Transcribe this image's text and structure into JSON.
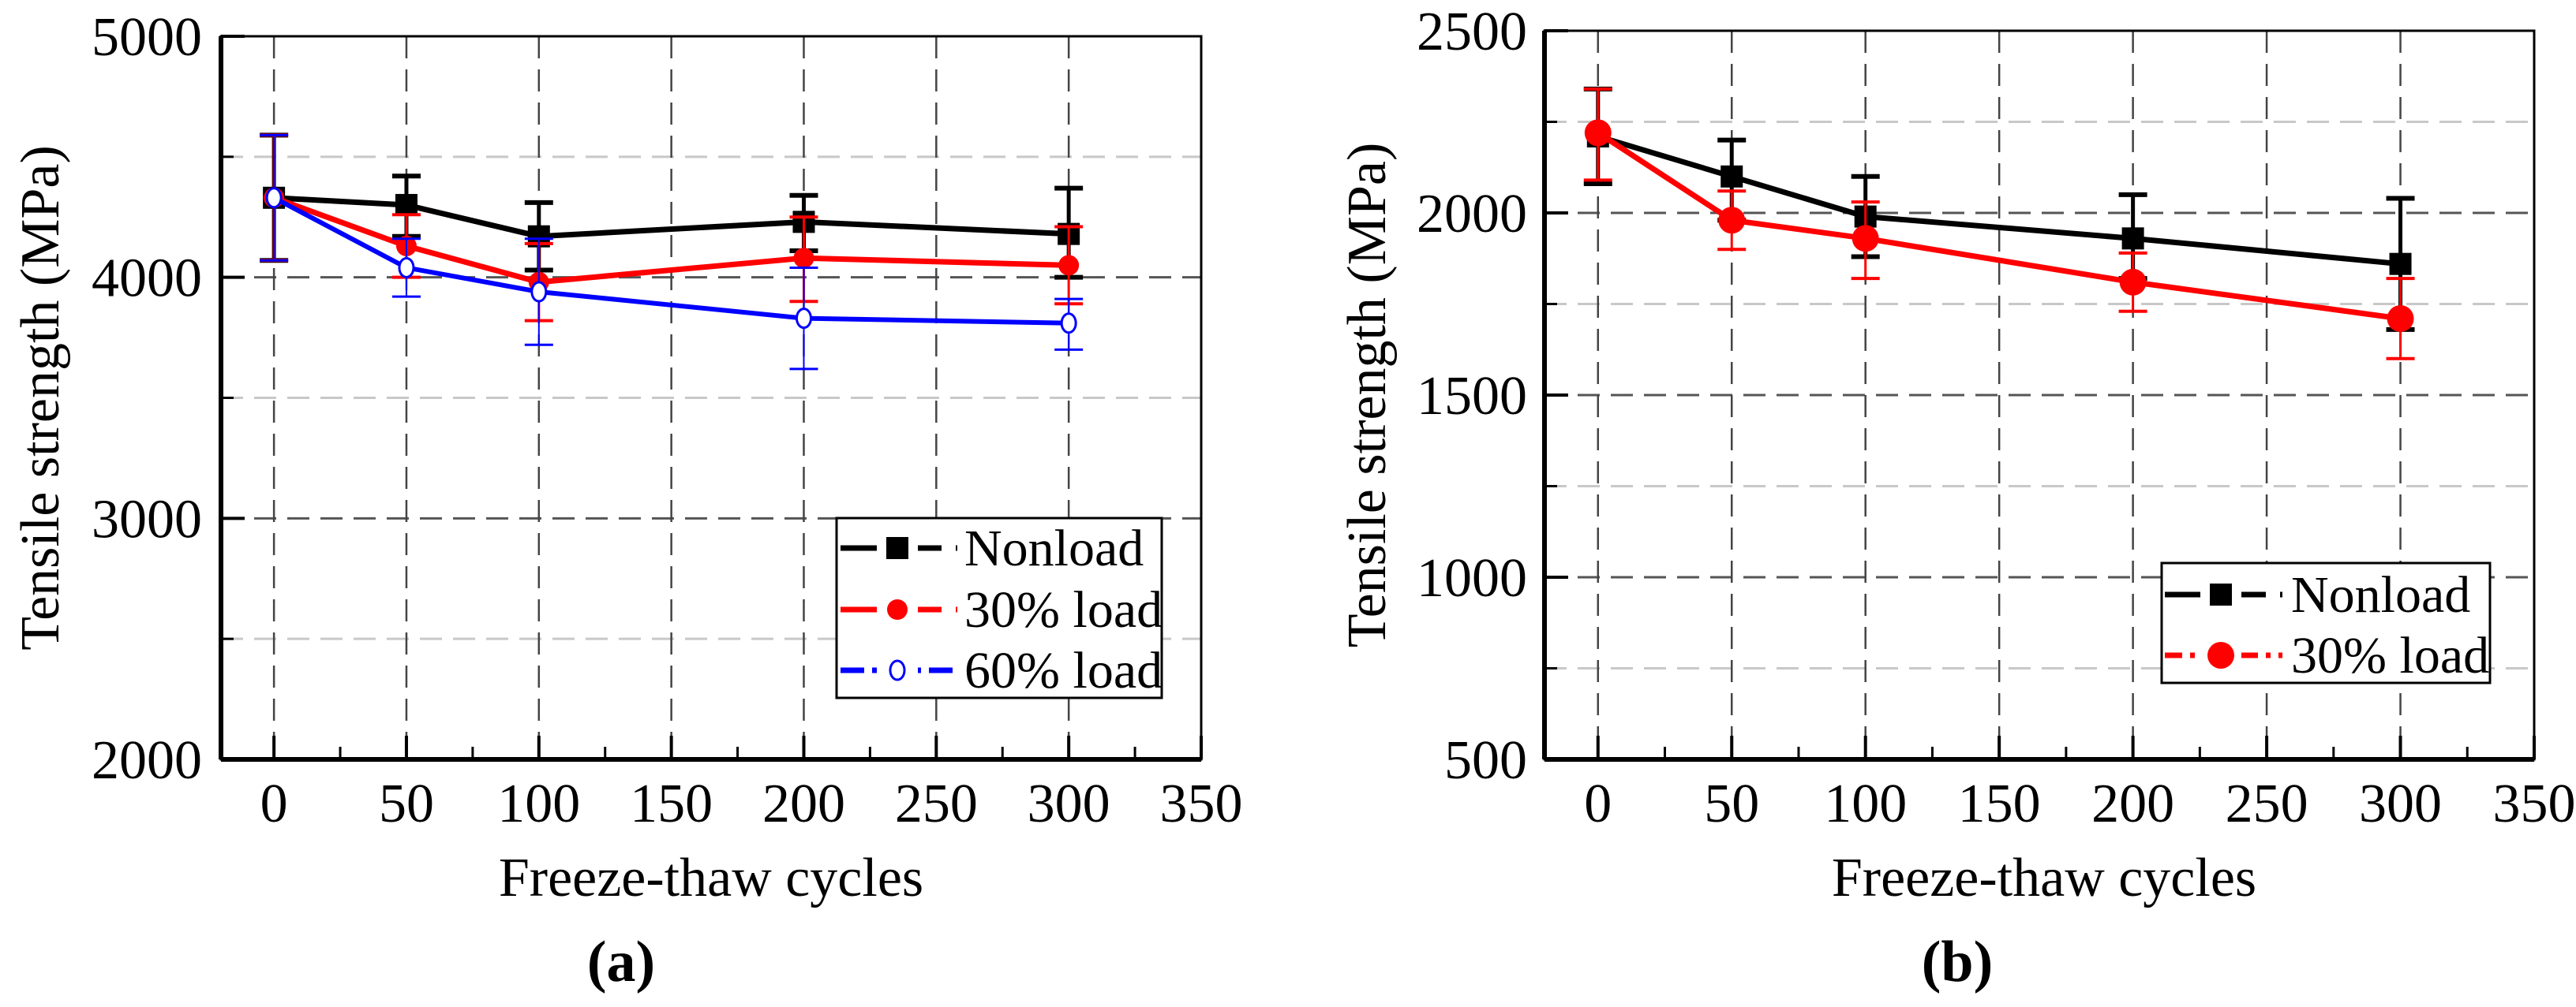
{
  "chart_data": [
    {
      "panel_label": "(a)",
      "type": "line",
      "xlabel": "Freeze-thaw cycles",
      "ylabel": "Tensile strength (MPa)",
      "xlim": [
        -20,
        350
      ],
      "ylim": [
        2000,
        5000
      ],
      "xticks": [
        0,
        50,
        100,
        150,
        200,
        250,
        300,
        350
      ],
      "xtick_labels": [
        "0",
        "50",
        "100",
        "150",
        "200",
        "250",
        "300",
        "350"
      ],
      "yticks": [
        2000,
        3000,
        4000,
        5000
      ],
      "ytick_labels": [
        "2000",
        "3000",
        "4000",
        "5000"
      ],
      "yminor": [
        2500,
        3500,
        4500
      ],
      "grid": true,
      "legend_position": "bottom-right",
      "x": [
        0,
        50,
        100,
        200,
        300
      ],
      "series": [
        {
          "name": "Nonload",
          "color": "#000000",
          "marker": "square",
          "values": [
            4330,
            4300,
            4170,
            4230,
            4180
          ],
          "err_low": [
            4070,
            4170,
            4030,
            4110,
            4000
          ],
          "err_high": [
            4590,
            4420,
            4310,
            4340,
            4370
          ]
        },
        {
          "name": "30% load",
          "color": "#ff0000",
          "marker": "circle",
          "values": [
            4330,
            4130,
            3980,
            4080,
            4050
          ],
          "err_low": [
            4070,
            4000,
            3820,
            3900,
            3890
          ],
          "err_high": [
            4590,
            4260,
            4140,
            4250,
            4210
          ]
        },
        {
          "name": "60% load",
          "color": "#0000ff",
          "marker": "open-circle",
          "values": [
            4330,
            4040,
            3940,
            3830,
            3810
          ],
          "err_low": [
            4070,
            3920,
            3720,
            3620,
            3700
          ],
          "err_high": [
            4590,
            4160,
            4160,
            4040,
            3910
          ]
        }
      ]
    },
    {
      "panel_label": "(b)",
      "type": "line",
      "xlabel": "Freeze-thaw cycles",
      "ylabel": "Tensile strength (MPa)",
      "xlim": [
        -20,
        350
      ],
      "ylim": [
        500,
        2500
      ],
      "xticks": [
        0,
        50,
        100,
        150,
        200,
        250,
        300,
        350
      ],
      "xtick_labels": [
        "0",
        "50",
        "100",
        "150",
        "200",
        "250",
        "300",
        "350"
      ],
      "yticks": [
        500,
        1000,
        1500,
        2000,
        2500
      ],
      "ytick_labels": [
        "500",
        "1000",
        "1500",
        "2000",
        "2500"
      ],
      "yminor": [
        750,
        1250,
        1750,
        2250
      ],
      "grid": true,
      "legend_position": "bottom-right",
      "x": [
        0,
        50,
        100,
        200,
        300
      ],
      "series": [
        {
          "name": "Nonload",
          "color": "#000000",
          "marker": "square",
          "values": [
            2210,
            2100,
            1990,
            1930,
            1860
          ],
          "err_low": [
            2080,
            1980,
            1880,
            1820,
            1680
          ],
          "err_high": [
            2340,
            2200,
            2100,
            2050,
            2040
          ]
        },
        {
          "name": "30% load",
          "color": "#ff0000",
          "marker": "circle",
          "values": [
            2220,
            1980,
            1930,
            1810,
            1710
          ],
          "err_low": [
            2090,
            1900,
            1820,
            1730,
            1600
          ],
          "err_high": [
            2340,
            2060,
            2030,
            1890,
            1820
          ]
        }
      ]
    }
  ]
}
